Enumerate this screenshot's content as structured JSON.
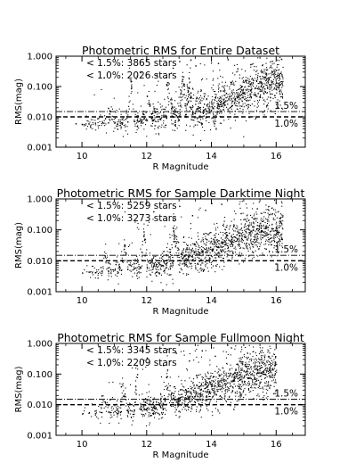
{
  "chart_data": [
    {
      "type": "scatter",
      "title": "Photometric RMS for Entire Dataset",
      "xlabel": "R Magnitude",
      "ylabel": "RMS(mag)",
      "xlim": [
        9.2,
        16.9
      ],
      "ylim": [
        0.001,
        1.0
      ],
      "yscale": "log",
      "xticks": [
        "10",
        "12",
        "14",
        "16"
      ],
      "yticks": [
        "1.000",
        "0.100",
        "0.010",
        "0.001"
      ],
      "annotations": [
        "< 1.5%: 3865 stars",
        "< 1.0%: 2026 stars"
      ],
      "reference_lines": [
        {
          "label": "1.5%",
          "y": 0.015,
          "style": "dash-dot"
        },
        {
          "label": "1.0%",
          "y": 0.01,
          "style": "dashed"
        }
      ],
      "approx_points": [
        [
          9.8,
          0.0062
        ],
        [
          10.0,
          0.0058
        ],
        [
          10.2,
          0.0061
        ],
        [
          10.4,
          0.0065
        ],
        [
          10.6,
          0.0063
        ],
        [
          10.8,
          0.0066
        ],
        [
          11.0,
          0.0068
        ],
        [
          11.2,
          0.0066
        ],
        [
          11.4,
          0.0071
        ],
        [
          11.6,
          0.0073
        ],
        [
          11.8,
          0.0076
        ],
        [
          12.0,
          0.0079
        ],
        [
          12.2,
          0.0083
        ],
        [
          12.4,
          0.0088
        ],
        [
          12.6,
          0.0094
        ],
        [
          12.8,
          0.0102
        ],
        [
          13.0,
          0.0113
        ],
        [
          13.2,
          0.0125
        ],
        [
          13.4,
          0.0142
        ],
        [
          13.6,
          0.0165
        ],
        [
          13.8,
          0.0192
        ],
        [
          14.0,
          0.0225
        ],
        [
          14.2,
          0.027
        ],
        [
          14.4,
          0.033
        ],
        [
          14.6,
          0.041
        ],
        [
          14.8,
          0.05
        ],
        [
          15.0,
          0.062
        ],
        [
          15.2,
          0.075
        ],
        [
          15.4,
          0.09
        ],
        [
          15.6,
          0.105
        ],
        [
          15.8,
          0.12
        ],
        [
          16.0,
          0.135
        ],
        [
          11.8,
          0.3
        ],
        [
          12.3,
          0.25
        ],
        [
          12.8,
          0.42
        ],
        [
          13.1,
          0.18
        ],
        [
          13.5,
          0.5
        ],
        [
          14.2,
          0.6
        ],
        [
          14.8,
          0.4
        ],
        [
          12.6,
          0.12
        ],
        [
          13.3,
          0.09
        ],
        [
          11.5,
          0.15
        ],
        [
          12.0,
          0.05
        ],
        [
          13.0,
          0.7
        ],
        [
          14.5,
          0.8
        ],
        [
          15.2,
          0.55
        ],
        [
          10.8,
          0.02
        ]
      ]
    },
    {
      "type": "scatter",
      "title": "Photometric RMS for Sample Darktime Night",
      "xlabel": "R Magnitude",
      "ylabel": "RMS(mag)",
      "xlim": [
        9.2,
        16.9
      ],
      "ylim": [
        0.001,
        1.0
      ],
      "yscale": "log",
      "xticks": [
        "10",
        "12",
        "14",
        "16"
      ],
      "yticks": [
        "1.000",
        "0.100",
        "0.010",
        "0.001"
      ],
      "annotations": [
        "< 1.5%: 5259 stars",
        "< 1.0%: 3273 stars"
      ],
      "reference_lines": [
        {
          "label": "1.5%",
          "y": 0.015,
          "style": "dash-dot"
        },
        {
          "label": "1.0%",
          "y": 0.01,
          "style": "dashed"
        }
      ],
      "approx_points": [
        [
          10.0,
          0.0042
        ],
        [
          10.2,
          0.0045
        ],
        [
          10.4,
          0.0043
        ],
        [
          10.6,
          0.0047
        ],
        [
          10.8,
          0.0049
        ],
        [
          11.0,
          0.0052
        ],
        [
          11.2,
          0.0051
        ],
        [
          11.4,
          0.0055
        ],
        [
          11.6,
          0.0058
        ],
        [
          11.8,
          0.0061
        ],
        [
          12.0,
          0.0065
        ],
        [
          12.2,
          0.0071
        ],
        [
          12.4,
          0.0078
        ],
        [
          12.6,
          0.0086
        ],
        [
          12.8,
          0.0096
        ],
        [
          13.0,
          0.0108
        ],
        [
          13.2,
          0.0122
        ],
        [
          13.4,
          0.014
        ],
        [
          13.6,
          0.0163
        ],
        [
          13.8,
          0.0192
        ],
        [
          14.0,
          0.023
        ],
        [
          14.2,
          0.028
        ],
        [
          14.4,
          0.034
        ],
        [
          14.6,
          0.042
        ],
        [
          14.8,
          0.051
        ],
        [
          15.0,
          0.062
        ],
        [
          15.2,
          0.072
        ],
        [
          15.4,
          0.081
        ],
        [
          15.6,
          0.088
        ],
        [
          15.8,
          0.092
        ],
        [
          16.0,
          0.095
        ],
        [
          12.2,
          0.4
        ],
        [
          12.6,
          0.22
        ],
        [
          13.0,
          0.6
        ],
        [
          13.4,
          0.3
        ],
        [
          13.8,
          0.45
        ],
        [
          14.3,
          0.7
        ],
        [
          14.9,
          0.35
        ],
        [
          15.4,
          0.5
        ],
        [
          11.9,
          0.09
        ],
        [
          12.8,
          0.12
        ],
        [
          11.3,
          0.03
        ],
        [
          10.7,
          0.015
        ]
      ]
    },
    {
      "type": "scatter",
      "title": "Photometric RMS for Sample Fullmoon Night",
      "xlabel": "R Magnitude",
      "ylabel": "RMS(mag)",
      "xlim": [
        9.2,
        16.9
      ],
      "ylim": [
        0.001,
        1.0
      ],
      "yscale": "log",
      "xticks": [
        "10",
        "12",
        "14",
        "16"
      ],
      "yticks": [
        "1.000",
        "0.100",
        "0.010",
        "0.001"
      ],
      "annotations": [
        "< 1.5%: 3345 stars",
        "< 1.0%: 2209 stars"
      ],
      "reference_lines": [
        {
          "label": "1.5%",
          "y": 0.015,
          "style": "dash-dot"
        },
        {
          "label": "1.0%",
          "y": 0.01,
          "style": "dashed"
        }
      ],
      "approx_points": [
        [
          10.0,
          0.0052
        ],
        [
          10.2,
          0.0055
        ],
        [
          10.4,
          0.0053
        ],
        [
          10.6,
          0.0058
        ],
        [
          10.8,
          0.006
        ],
        [
          11.0,
          0.0063
        ],
        [
          11.2,
          0.0062
        ],
        [
          11.4,
          0.0066
        ],
        [
          11.6,
          0.007
        ],
        [
          11.8,
          0.0074
        ],
        [
          12.0,
          0.0079
        ],
        [
          12.2,
          0.0086
        ],
        [
          12.4,
          0.0095
        ],
        [
          12.6,
          0.0106
        ],
        [
          12.8,
          0.012
        ],
        [
          13.0,
          0.0138
        ],
        [
          13.2,
          0.016
        ],
        [
          13.4,
          0.019
        ],
        [
          13.6,
          0.023
        ],
        [
          13.8,
          0.028
        ],
        [
          14.0,
          0.034
        ],
        [
          14.2,
          0.042
        ],
        [
          14.4,
          0.051
        ],
        [
          14.6,
          0.062
        ],
        [
          14.8,
          0.074
        ],
        [
          15.0,
          0.087
        ],
        [
          15.2,
          0.1
        ],
        [
          15.4,
          0.112
        ],
        [
          15.6,
          0.12
        ],
        [
          15.8,
          0.125
        ],
        [
          12.0,
          0.35
        ],
        [
          12.5,
          0.2
        ],
        [
          12.9,
          0.5
        ],
        [
          13.3,
          0.28
        ],
        [
          13.7,
          0.6
        ],
        [
          14.1,
          0.4
        ],
        [
          14.6,
          0.75
        ],
        [
          15.1,
          0.5
        ],
        [
          11.7,
          0.1
        ],
        [
          12.6,
          0.08
        ],
        [
          11.2,
          0.04
        ],
        [
          10.6,
          0.02
        ]
      ]
    }
  ]
}
